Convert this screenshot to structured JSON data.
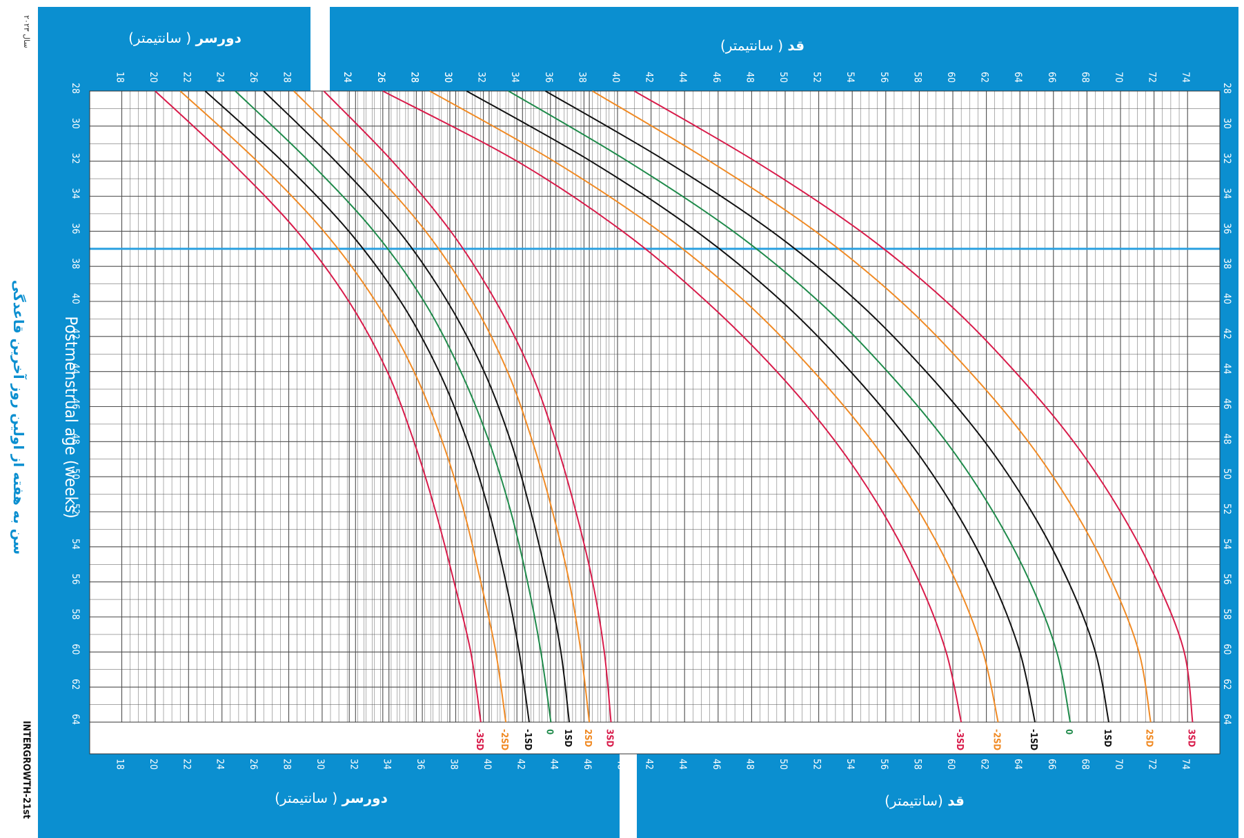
{
  "head_title": {
    "bold": "دورسر",
    "rest": "( سانتیمتر)"
  },
  "len_title": {
    "bold": "قد",
    "rest": "( سانتیمتر)"
  },
  "len_title_bottom": {
    "bold": "قد",
    "rest": "(سانتیمتر)"
  },
  "left_title": "سن به هفته از اولین روز آخرین قاعدگی",
  "left_title_en": "Postmenstrual age (weeks)",
  "left_top_note": "سال ۲۰۲۳",
  "brand": "INTERGROWTH-21st",
  "colors": {
    "panel": "#0b8fd0",
    "sd3": "#d81b4a",
    "sd2": "#f08a24",
    "sd1": "#111111",
    "median": "#1e8a4a",
    "grid": "#4d4d4d",
    "ref_line": "#2aa0e0"
  },
  "chart_data": {
    "type": "line",
    "x_axis": {
      "label": "Postmenstrual age (weeks)",
      "ticks": [
        28,
        30,
        32,
        34,
        36,
        38,
        40,
        42,
        44,
        46,
        48,
        50,
        52,
        54,
        56,
        58,
        60,
        62,
        64
      ]
    },
    "reference_line_week": 37,
    "head_circumference": {
      "unit": "cm",
      "top_ticks": [
        18,
        20,
        22,
        24,
        26,
        28,
        30
      ],
      "bottom_ticks": [
        18,
        20,
        22,
        24,
        26,
        28,
        30,
        32,
        34,
        36,
        38,
        40,
        42,
        44,
        46,
        48
      ],
      "extra_top_ticks": [
        24,
        26,
        28,
        30
      ],
      "weeks": [
        28,
        32,
        36,
        40,
        44,
        48,
        52,
        56,
        60,
        64
      ],
      "series": [
        {
          "name": "-3SD",
          "values": [
            20.0,
            24.5,
            28.5,
            31.6,
            33.9,
            35.5,
            36.8,
            37.9,
            38.9,
            39.5
          ]
        },
        {
          "name": "-2SD",
          "values": [
            21.5,
            26.1,
            30.1,
            33.2,
            35.5,
            37.2,
            38.5,
            39.5,
            40.4,
            41.0
          ]
        },
        {
          "name": "-1SD",
          "values": [
            23.0,
            27.6,
            31.6,
            34.7,
            37.0,
            38.7,
            40.0,
            41.0,
            41.8,
            42.4
          ]
        },
        {
          "name": "0",
          "values": [
            24.8,
            29.2,
            33.1,
            36.1,
            38.3,
            40.0,
            41.3,
            42.3,
            43.1,
            43.7
          ]
        },
        {
          "name": "1SD",
          "values": [
            26.5,
            30.8,
            34.6,
            37.5,
            39.7,
            41.3,
            42.5,
            43.5,
            44.3,
            44.8
          ]
        },
        {
          "name": "2SD",
          "values": [
            28.3,
            32.5,
            36.2,
            39.0,
            41.1,
            42.6,
            43.8,
            44.8,
            45.5,
            46.0
          ]
        },
        {
          "name": "3SD",
          "values": [
            30.1,
            34.2,
            37.7,
            40.4,
            42.5,
            44.0,
            45.2,
            46.2,
            46.9,
            47.3
          ]
        }
      ]
    },
    "length": {
      "unit": "cm",
      "top_ticks": [
        24,
        26,
        28,
        30,
        32,
        34,
        36,
        38,
        40,
        42,
        44,
        46,
        48,
        50,
        52,
        54,
        56,
        58,
        60,
        62,
        64,
        66,
        68,
        70,
        72,
        74
      ],
      "bottom_ticks": [
        42,
        44,
        46,
        48,
        50,
        52,
        54,
        56,
        58,
        60,
        62,
        64,
        66,
        68,
        70,
        72,
        74
      ],
      "weeks": [
        28,
        32,
        36,
        40,
        44,
        48,
        52,
        56,
        60,
        64
      ],
      "series": [
        {
          "name": "-3SD",
          "values": [
            26.0,
            34.0,
            40.3,
            45.3,
            49.5,
            53.0,
            55.8,
            58.0,
            59.6,
            60.5
          ]
        },
        {
          "name": "-2SD",
          "values": [
            28.8,
            36.2,
            42.5,
            47.6,
            51.7,
            55.2,
            58.0,
            60.2,
            61.8,
            62.7
          ]
        },
        {
          "name": "-1SD",
          "values": [
            31.0,
            38.4,
            44.7,
            49.8,
            53.9,
            57.4,
            60.2,
            62.4,
            64.0,
            64.9
          ]
        },
        {
          "name": "0",
          "values": [
            33.5,
            40.6,
            46.9,
            52.0,
            56.1,
            59.6,
            62.4,
            64.6,
            66.2,
            67.0
          ]
        },
        {
          "name": "1SD",
          "values": [
            35.7,
            42.9,
            49.2,
            54.3,
            58.4,
            61.9,
            64.7,
            66.9,
            68.5,
            69.3
          ]
        },
        {
          "name": "2SD",
          "values": [
            38.5,
            45.5,
            51.8,
            56.9,
            61.0,
            64.5,
            67.3,
            69.5,
            71.1,
            71.8
          ]
        },
        {
          "name": "3SD",
          "values": [
            41.0,
            48.2,
            54.5,
            59.6,
            63.7,
            67.2,
            70.0,
            72.2,
            73.8,
            74.3
          ]
        }
      ]
    }
  }
}
